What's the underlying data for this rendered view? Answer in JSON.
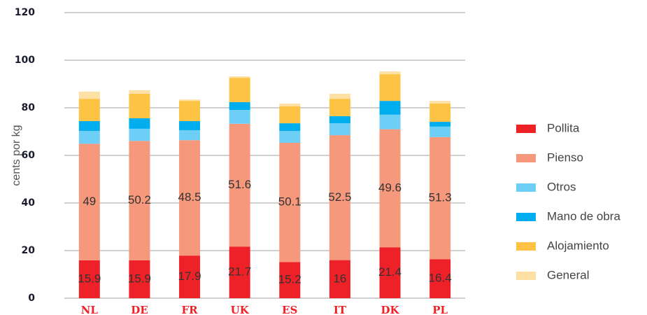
{
  "chart_data": {
    "type": "stacked_bar",
    "y_label": "cents por kg",
    "categories": [
      "NL",
      "DE",
      "FR",
      "UK",
      "ES",
      "IT",
      "DK",
      "PL"
    ],
    "series": [
      {
        "name": "Pollita",
        "color": "#ee2128",
        "show_labels": true,
        "values": [
          15.9,
          15.9,
          17.9,
          21.7,
          15.2,
          16.0,
          21.4,
          16.4
        ]
      },
      {
        "name": "Pienso",
        "color": "#f5987c",
        "show_labels": true,
        "values": [
          49.0,
          50.2,
          48.5,
          51.6,
          50.1,
          52.5,
          49.6,
          51.3
        ]
      },
      {
        "name": "Otros",
        "color": "#6dcff6",
        "show_labels": false,
        "values": [
          5.4,
          5.1,
          4.2,
          5.8,
          5.0,
          5.0,
          6.1,
          4.4
        ]
      },
      {
        "name": "Mano de obra",
        "color": "#00aeef",
        "show_labels": false,
        "values": [
          4.1,
          4.4,
          3.8,
          3.3,
          3.2,
          3.0,
          5.8,
          2.0
        ]
      },
      {
        "name": "Alojamiento",
        "color": "#fdc344",
        "show_labels": false,
        "values": [
          9.4,
          10.3,
          8.5,
          10.2,
          7.1,
          7.3,
          11.2,
          7.7
        ]
      },
      {
        "name": "General",
        "color": "#fde0a4",
        "show_labels": false,
        "values": [
          3.0,
          1.5,
          0.6,
          0.6,
          1.2,
          2.1,
          1.2,
          1.1
        ]
      }
    ],
    "ylim": [
      0,
      120
    ],
    "yticks": [
      0,
      20,
      40,
      60,
      80,
      100,
      120
    ],
    "grid": true,
    "legend": "right"
  }
}
